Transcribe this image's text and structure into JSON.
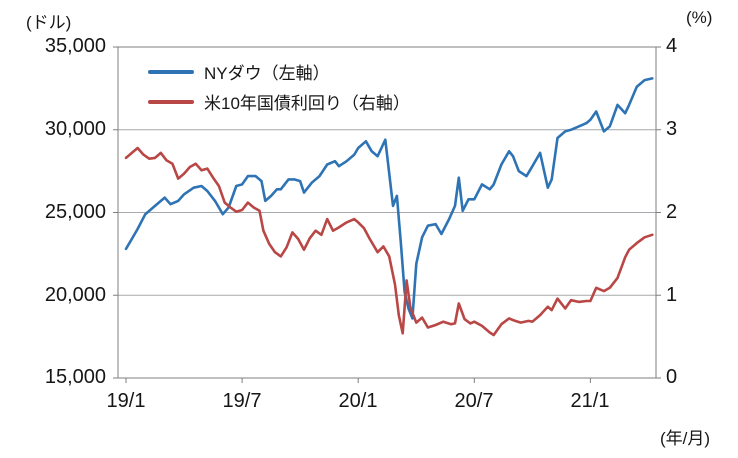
{
  "units": {
    "left": "(ドル)",
    "right": "(%)",
    "x": "(年/月)"
  },
  "chart_data": {
    "type": "line",
    "title": "",
    "grid": true,
    "legend_position": "top-left-inside",
    "left_axis": {
      "label": "(ドル)",
      "min": 15000,
      "max": 35000,
      "ticks": [
        "35,000",
        "30,000",
        "25,000",
        "20,000",
        "15,000"
      ],
      "tick_values": [
        35000,
        30000,
        25000,
        20000,
        15000
      ]
    },
    "right_axis": {
      "label": "(%)",
      "min": 0,
      "max": 4,
      "ticks": [
        "4",
        "3",
        "2",
        "1",
        "0"
      ],
      "tick_values": [
        4,
        3,
        2,
        1,
        0
      ]
    },
    "x_axis": {
      "label": "(年/月)",
      "ticks": [
        "19/1",
        "19/7",
        "20/1",
        "20/7",
        "21/1"
      ],
      "tick_positions_months": [
        0,
        6,
        12,
        18,
        24
      ],
      "months_origin": "2019/1"
    },
    "series": [
      {
        "name": "NYダウ（左軸）",
        "axis": "left",
        "color": "#2e74b5",
        "x": [
          0,
          0.3,
          0.6,
          1.0,
          1.5,
          2.0,
          2.3,
          2.7,
          3.0,
          3.5,
          3.9,
          4.2,
          4.6,
          5.0,
          5.3,
          5.7,
          6.0,
          6.3,
          6.7,
          7.0,
          7.2,
          7.5,
          7.8,
          8.0,
          8.4,
          8.7,
          9.0,
          9.2,
          9.6,
          10.0,
          10.4,
          10.8,
          11.0,
          11.4,
          11.8,
          12.0,
          12.4,
          12.7,
          13.0,
          13.4,
          13.8,
          14.0,
          14.2,
          14.4,
          14.6,
          14.8,
          15.0,
          15.3,
          15.6,
          16.0,
          16.3,
          16.7,
          17.0,
          17.2,
          17.4,
          17.7,
          18.0,
          18.4,
          18.8,
          19.0,
          19.4,
          19.8,
          20.0,
          20.3,
          20.7,
          21.0,
          21.4,
          21.8,
          22.0,
          22.3,
          22.7,
          23.0,
          23.4,
          23.8,
          24.0,
          24.3,
          24.7,
          25.0,
          25.4,
          25.8,
          26.0,
          26.4,
          26.8,
          27.2
        ],
        "values": [
          22800,
          23400,
          24000,
          24900,
          25400,
          25900,
          25500,
          25700,
          26100,
          26500,
          26600,
          26300,
          25700,
          24900,
          25300,
          26600,
          26700,
          27200,
          27200,
          26900,
          25700,
          26000,
          26400,
          26400,
          27000,
          27000,
          26900,
          26200,
          26800,
          27200,
          27900,
          28100,
          27800,
          28100,
          28500,
          28900,
          29300,
          28700,
          28400,
          29400,
          25400,
          26000,
          23200,
          20200,
          19200,
          18600,
          21900,
          23500,
          24200,
          24300,
          23700,
          24600,
          25400,
          27100,
          25100,
          25800,
          25800,
          26700,
          26400,
          26700,
          27900,
          28700,
          28400,
          27500,
          27200,
          27800,
          28600,
          26500,
          27000,
          29500,
          29900,
          30000,
          30200,
          30400,
          30600,
          31100,
          29900,
          30200,
          31500,
          31000,
          31500,
          32600,
          33000,
          33100
        ]
      },
      {
        "name": "米10年国債利回り（右軸）",
        "axis": "right",
        "color": "#b84745",
        "x": [
          0,
          0.3,
          0.6,
          0.9,
          1.2,
          1.5,
          1.8,
          2.1,
          2.4,
          2.7,
          3.0,
          3.3,
          3.6,
          3.9,
          4.2,
          4.5,
          4.8,
          5.1,
          5.4,
          5.7,
          6.0,
          6.3,
          6.6,
          6.9,
          7.1,
          7.4,
          7.7,
          8.0,
          8.3,
          8.6,
          8.9,
          9.2,
          9.5,
          9.8,
          10.1,
          10.4,
          10.7,
          11.0,
          11.4,
          11.8,
          12.0,
          12.3,
          12.6,
          13.0,
          13.3,
          13.6,
          13.9,
          14.1,
          14.3,
          14.5,
          14.7,
          15.0,
          15.3,
          15.6,
          16.0,
          16.4,
          16.8,
          17.0,
          17.2,
          17.5,
          17.8,
          18.0,
          18.4,
          18.8,
          19.0,
          19.4,
          19.8,
          20.0,
          20.4,
          20.8,
          21.0,
          21.4,
          21.8,
          22.0,
          22.3,
          22.7,
          23.0,
          23.4,
          23.8,
          24.0,
          24.3,
          24.7,
          25.0,
          25.4,
          25.8,
          26.0,
          26.4,
          26.8,
          27.2
        ],
        "values": [
          2.66,
          2.72,
          2.78,
          2.7,
          2.65,
          2.66,
          2.72,
          2.63,
          2.59,
          2.41,
          2.47,
          2.55,
          2.59,
          2.51,
          2.53,
          2.42,
          2.32,
          2.12,
          2.06,
          2.01,
          2.03,
          2.12,
          2.06,
          2.02,
          1.78,
          1.62,
          1.52,
          1.47,
          1.58,
          1.76,
          1.68,
          1.55,
          1.69,
          1.78,
          1.73,
          1.92,
          1.78,
          1.82,
          1.88,
          1.92,
          1.88,
          1.81,
          1.68,
          1.52,
          1.59,
          1.47,
          1.13,
          0.76,
          0.54,
          1.18,
          0.85,
          0.67,
          0.73,
          0.61,
          0.64,
          0.68,
          0.65,
          0.66,
          0.9,
          0.71,
          0.66,
          0.68,
          0.63,
          0.55,
          0.52,
          0.65,
          0.72,
          0.7,
          0.67,
          0.69,
          0.68,
          0.76,
          0.86,
          0.82,
          0.96,
          0.84,
          0.94,
          0.92,
          0.93,
          0.93,
          1.09,
          1.05,
          1.09,
          1.21,
          1.46,
          1.55,
          1.63,
          1.7,
          1.73
        ]
      }
    ]
  }
}
